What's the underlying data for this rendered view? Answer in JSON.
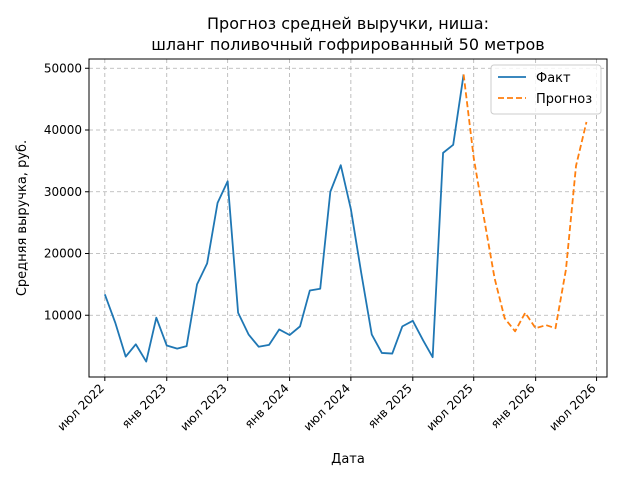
{
  "chart_data": {
    "type": "line",
    "title": [
      "Прогноз средней выручки, ниша:",
      "шланг поливочный гофрированный 50 метров"
    ],
    "xlabel": "Дата",
    "ylabel": "Средняя выручка, руб.",
    "ylim": [
      0,
      51500
    ],
    "xlim": [
      "2022-05-15",
      "2026-08-01"
    ],
    "grid": true,
    "legend_position": "top-right",
    "y_ticks": [
      10000,
      20000,
      30000,
      40000,
      50000
    ],
    "y_tick_labels": [
      "10000",
      "20000",
      "30000",
      "40000",
      "50000"
    ],
    "x_ticks": [
      "2022-07-01",
      "2023-01-01",
      "2023-07-01",
      "2024-01-01",
      "2024-07-01",
      "2025-01-01",
      "2025-07-01",
      "2026-01-01",
      "2026-07-01"
    ],
    "x_tick_labels": [
      "июл 2022",
      "янв 2023",
      "июл 2023",
      "янв 2024",
      "июл 2024",
      "янв 2025",
      "июл 2025",
      "янв 2026",
      "июл 2026"
    ],
    "series": [
      {
        "name": "Факт",
        "color": "#1f77b4",
        "style": "solid",
        "x": [
          "2022-07-01",
          "2022-08-01",
          "2022-09-01",
          "2022-10-01",
          "2022-11-01",
          "2022-12-01",
          "2023-01-01",
          "2023-02-01",
          "2023-03-01",
          "2023-04-01",
          "2023-05-01",
          "2023-06-01",
          "2023-07-01",
          "2023-08-01",
          "2023-09-01",
          "2023-10-01",
          "2023-11-01",
          "2023-12-01",
          "2024-01-01",
          "2024-02-01",
          "2024-03-01",
          "2024-04-01",
          "2024-05-01",
          "2024-06-01",
          "2024-07-01",
          "2024-08-01",
          "2024-09-01",
          "2024-10-01",
          "2024-11-01",
          "2024-12-01",
          "2025-01-01",
          "2025-02-01",
          "2025-03-01",
          "2025-04-01",
          "2025-05-01",
          "2025-06-01"
        ],
        "y": [
          13400,
          8800,
          3300,
          5300,
          2500,
          9600,
          5100,
          4600,
          5000,
          15000,
          18400,
          28200,
          31700,
          10400,
          6900,
          4900,
          5200,
          7700,
          6800,
          8200,
          14000,
          14300,
          30000,
          34300,
          27200,
          16800,
          6900,
          3900,
          3800,
          8200,
          9100,
          5900,
          3200,
          36300,
          37600,
          49000
        ]
      },
      {
        "name": "Прогноз",
        "color": "#ff7f0e",
        "style": "dashed",
        "x": [
          "2025-06-01",
          "2025-07-01",
          "2025-08-01",
          "2025-09-01",
          "2025-10-01",
          "2025-11-01",
          "2025-12-01",
          "2026-01-01",
          "2026-02-01",
          "2026-03-01",
          "2026-04-01",
          "2026-05-01",
          "2026-06-01"
        ],
        "y": [
          49000,
          35500,
          25600,
          16000,
          9500,
          7400,
          10400,
          7900,
          8400,
          7900,
          17400,
          34200,
          41300
        ]
      }
    ]
  }
}
